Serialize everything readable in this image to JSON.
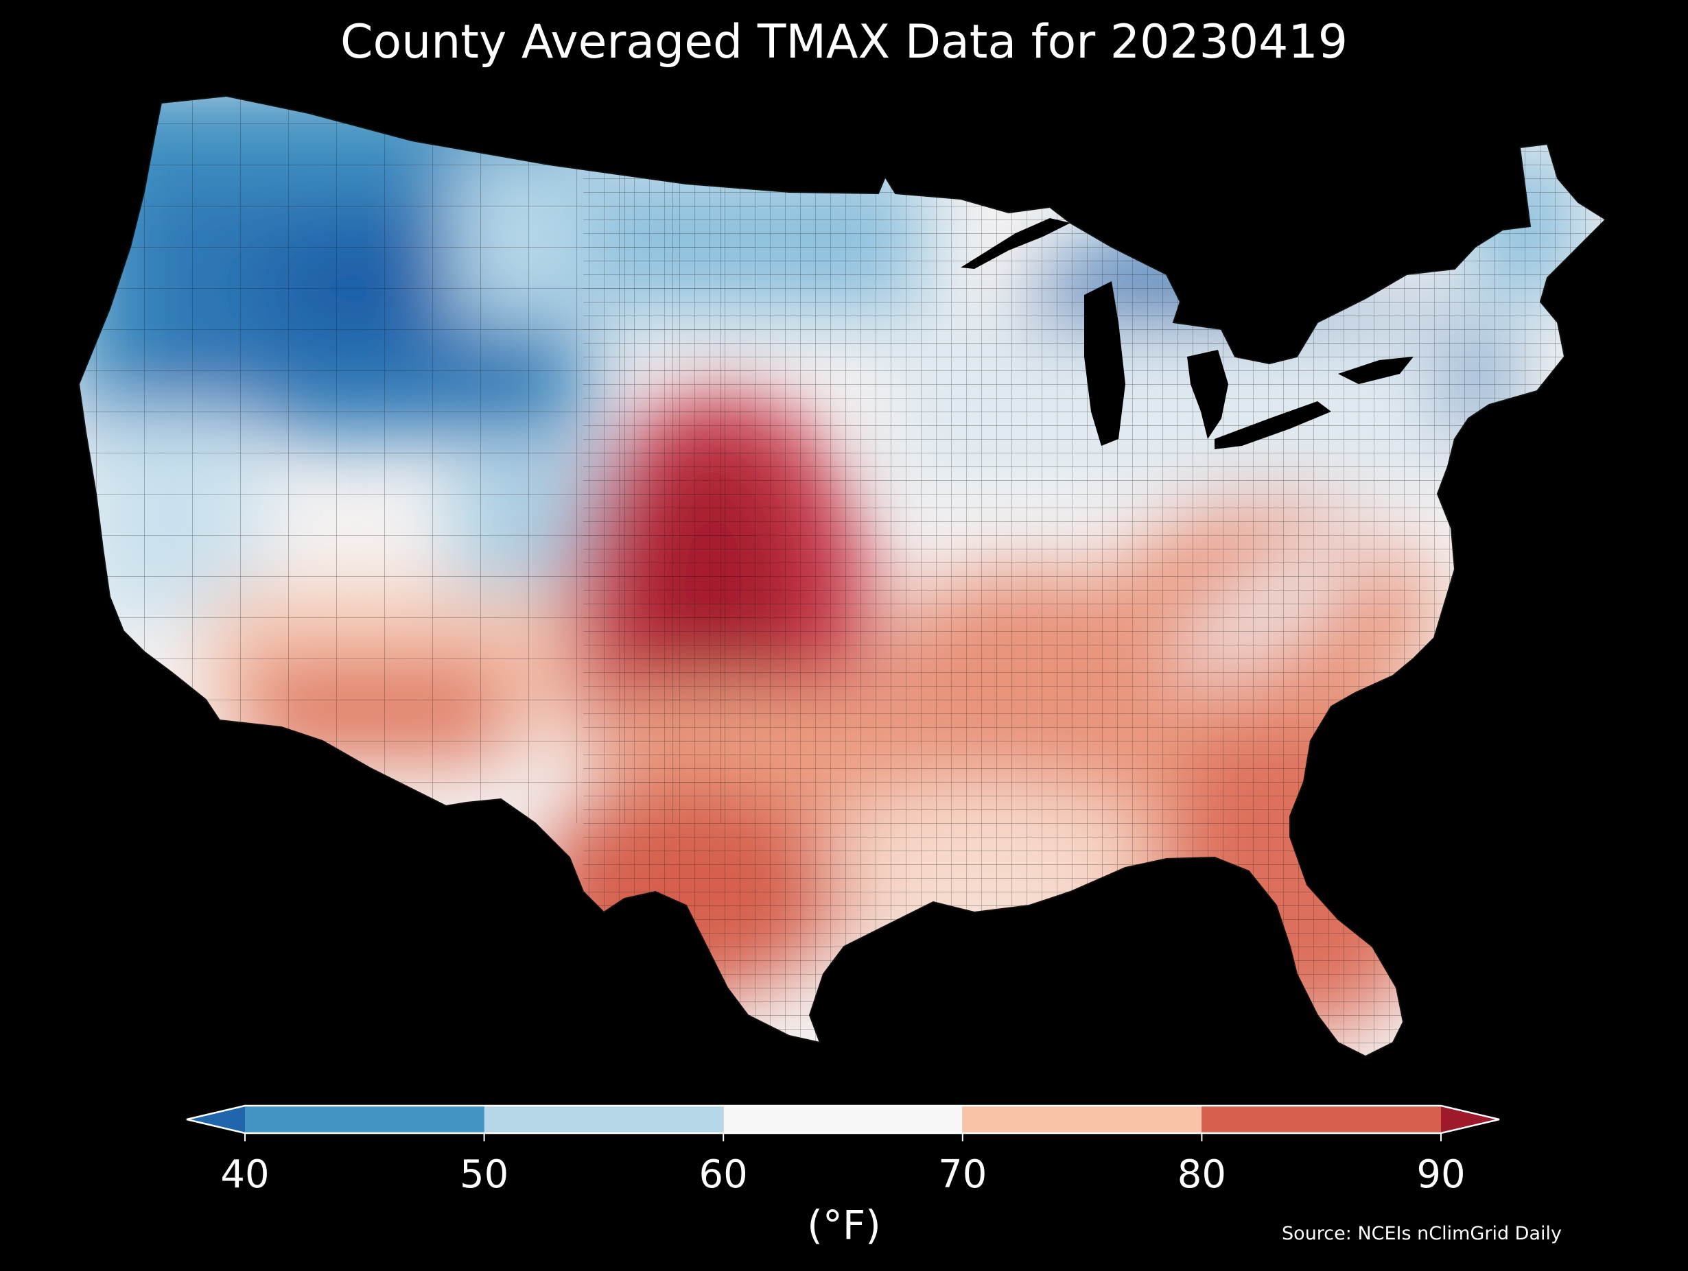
{
  "title": "County Averaged TMAX Data for 20230419",
  "colorbar": {
    "unit_label": "(°F)",
    "ticks": [
      "40",
      "50",
      "60",
      "70",
      "80",
      "90"
    ],
    "bins": [
      {
        "range": "<40",
        "color": "#2166ac"
      },
      {
        "range": "40-50",
        "color": "#4393c3"
      },
      {
        "range": "50-60",
        "color": "#b5d7e8"
      },
      {
        "range": "60-70",
        "color": "#f7f7f7"
      },
      {
        "range": "70-80",
        "color": "#f8c3a6"
      },
      {
        "range": "80-90",
        "color": "#d6604d"
      },
      {
        "range": ">90",
        "color": "#9e1a2a"
      }
    ]
  },
  "source": "Source: NCEIs nClimGrid Daily",
  "colors": {
    "background": "#000000",
    "very_cold": "#1f5fa8",
    "cold": "#4393c3",
    "cool": "#b5d7e8",
    "mild": "#f4f2f2",
    "warm": "#f6b597",
    "hot": "#d6604d",
    "very_hot": "#a51c2d"
  }
}
